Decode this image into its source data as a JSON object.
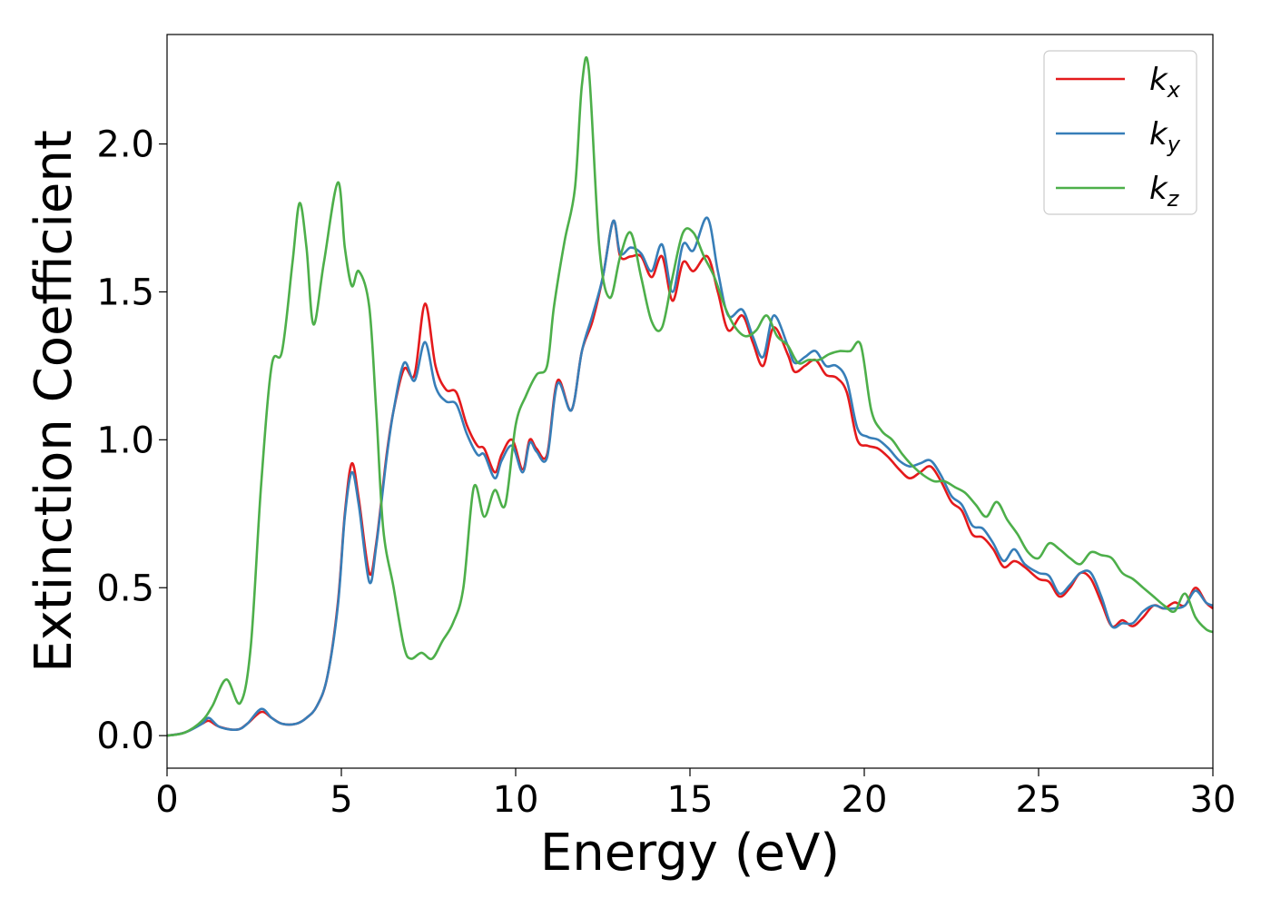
{
  "chart_data": {
    "type": "line",
    "title": "",
    "xlabel": "Energy (eV)",
    "ylabel": "Extinction Coefficient",
    "xlim": [
      0,
      30
    ],
    "ylim": [
      -0.11,
      2.37
    ],
    "xticks": [
      0,
      5,
      10,
      15,
      20,
      25,
      30
    ],
    "yticks": [
      0.0,
      0.5,
      1.0,
      1.5,
      2.0
    ],
    "xtick_labels": [
      "0",
      "5",
      "10",
      "15",
      "20",
      "25",
      "30"
    ],
    "ytick_labels": [
      "0.0",
      "0.5",
      "1.0",
      "1.5",
      "2.0"
    ],
    "grid": false,
    "legend_position": "top-right",
    "series": [
      {
        "name": "k_x",
        "legend_base": "k",
        "legend_sub": "x",
        "color": "#e41a1c",
        "x": [
          0,
          0.5,
          1.0,
          1.2,
          1.5,
          2.0,
          2.3,
          2.7,
          3.0,
          3.3,
          3.7,
          4.0,
          4.3,
          4.6,
          4.9,
          5.1,
          5.3,
          5.5,
          5.8,
          6.0,
          6.3,
          6.5,
          6.8,
          7.1,
          7.4,
          7.7,
          8.0,
          8.3,
          8.6,
          8.9,
          9.1,
          9.4,
          9.6,
          9.9,
          10.2,
          10.4,
          10.6,
          10.9,
          11.2,
          11.6,
          11.9,
          12.2,
          12.5,
          12.8,
          13.0,
          13.3,
          13.6,
          13.9,
          14.2,
          14.5,
          14.8,
          15.1,
          15.5,
          15.8,
          16.1,
          16.5,
          16.8,
          17.1,
          17.4,
          17.8,
          18.0,
          18.3,
          18.6,
          18.9,
          19.2,
          19.5,
          19.8,
          20.1,
          20.4,
          20.7,
          21.0,
          21.3,
          21.6,
          21.9,
          22.2,
          22.5,
          22.8,
          23.1,
          23.4,
          23.7,
          24.0,
          24.3,
          24.6,
          25.0,
          25.3,
          25.6,
          25.9,
          26.2,
          26.5,
          26.8,
          27.1,
          27.4,
          27.7,
          28.0,
          28.3,
          28.6,
          28.9,
          29.2,
          29.5,
          29.8,
          30.0
        ],
        "y": [
          0.0,
          0.01,
          0.04,
          0.05,
          0.03,
          0.02,
          0.04,
          0.08,
          0.06,
          0.04,
          0.04,
          0.06,
          0.1,
          0.2,
          0.45,
          0.75,
          0.92,
          0.8,
          0.55,
          0.65,
          0.95,
          1.1,
          1.24,
          1.22,
          1.46,
          1.25,
          1.17,
          1.16,
          1.05,
          0.98,
          0.97,
          0.89,
          0.95,
          1.0,
          0.9,
          1.0,
          0.97,
          0.95,
          1.2,
          1.1,
          1.3,
          1.4,
          1.55,
          1.74,
          1.62,
          1.62,
          1.62,
          1.55,
          1.62,
          1.47,
          1.6,
          1.57,
          1.62,
          1.5,
          1.37,
          1.42,
          1.33,
          1.25,
          1.38,
          1.29,
          1.23,
          1.25,
          1.27,
          1.22,
          1.21,
          1.16,
          1.0,
          0.98,
          0.97,
          0.94,
          0.9,
          0.87,
          0.89,
          0.91,
          0.86,
          0.79,
          0.76,
          0.68,
          0.67,
          0.63,
          0.57,
          0.59,
          0.57,
          0.53,
          0.52,
          0.47,
          0.5,
          0.55,
          0.53,
          0.45,
          0.37,
          0.39,
          0.37,
          0.4,
          0.44,
          0.43,
          0.45,
          0.44,
          0.5,
          0.45,
          0.43
        ]
      },
      {
        "name": "k_y",
        "legend_base": "k",
        "legend_sub": "y",
        "color": "#377eb8",
        "x": [
          0,
          0.5,
          1.0,
          1.2,
          1.5,
          2.0,
          2.3,
          2.7,
          3.0,
          3.3,
          3.7,
          4.0,
          4.3,
          4.6,
          4.9,
          5.1,
          5.3,
          5.5,
          5.8,
          6.0,
          6.3,
          6.5,
          6.8,
          7.1,
          7.4,
          7.7,
          8.0,
          8.3,
          8.6,
          8.9,
          9.1,
          9.4,
          9.6,
          9.9,
          10.2,
          10.4,
          10.6,
          10.9,
          11.2,
          11.6,
          11.9,
          12.2,
          12.5,
          12.8,
          13.0,
          13.3,
          13.6,
          13.9,
          14.2,
          14.5,
          14.8,
          15.1,
          15.5,
          15.8,
          16.1,
          16.5,
          16.8,
          17.1,
          17.4,
          17.8,
          18.0,
          18.3,
          18.6,
          18.9,
          19.2,
          19.5,
          19.8,
          20.1,
          20.4,
          20.7,
          21.0,
          21.3,
          21.6,
          21.9,
          22.2,
          22.5,
          22.8,
          23.1,
          23.4,
          23.7,
          24.0,
          24.3,
          24.6,
          25.0,
          25.3,
          25.6,
          25.9,
          26.2,
          26.5,
          26.8,
          27.1,
          27.4,
          27.7,
          28.0,
          28.3,
          28.6,
          28.9,
          29.2,
          29.5,
          29.8,
          30.0
        ],
        "y": [
          0.0,
          0.01,
          0.04,
          0.06,
          0.03,
          0.02,
          0.04,
          0.09,
          0.06,
          0.04,
          0.04,
          0.06,
          0.1,
          0.2,
          0.44,
          0.74,
          0.89,
          0.78,
          0.52,
          0.64,
          0.94,
          1.1,
          1.26,
          1.2,
          1.33,
          1.18,
          1.13,
          1.12,
          1.02,
          0.95,
          0.95,
          0.87,
          0.93,
          0.98,
          0.89,
          0.99,
          0.96,
          0.94,
          1.19,
          1.1,
          1.3,
          1.42,
          1.55,
          1.74,
          1.63,
          1.65,
          1.63,
          1.57,
          1.66,
          1.5,
          1.66,
          1.64,
          1.75,
          1.57,
          1.42,
          1.44,
          1.35,
          1.28,
          1.42,
          1.32,
          1.26,
          1.28,
          1.3,
          1.25,
          1.25,
          1.2,
          1.04,
          1.01,
          1.0,
          0.97,
          0.93,
          0.91,
          0.92,
          0.93,
          0.88,
          0.81,
          0.78,
          0.71,
          0.7,
          0.65,
          0.59,
          0.63,
          0.58,
          0.55,
          0.54,
          0.48,
          0.51,
          0.55,
          0.55,
          0.47,
          0.37,
          0.38,
          0.38,
          0.42,
          0.44,
          0.43,
          0.43,
          0.44,
          0.49,
          0.45,
          0.44
        ]
      },
      {
        "name": "k_z",
        "legend_base": "k",
        "legend_sub": "z",
        "color": "#4daf4a",
        "x": [
          0,
          0.5,
          1.0,
          1.3,
          1.7,
          2.1,
          2.4,
          2.7,
          3.0,
          3.3,
          3.6,
          3.8,
          4.0,
          4.2,
          4.5,
          4.9,
          5.1,
          5.3,
          5.5,
          5.8,
          6.0,
          6.2,
          6.5,
          6.8,
          7.0,
          7.3,
          7.6,
          7.9,
          8.2,
          8.5,
          8.8,
          9.1,
          9.4,
          9.7,
          10.0,
          10.3,
          10.6,
          10.9,
          11.1,
          11.4,
          11.7,
          11.9,
          12.1,
          12.4,
          12.7,
          13.0,
          13.3,
          13.6,
          13.9,
          14.2,
          14.5,
          14.8,
          15.1,
          15.4,
          15.7,
          16.0,
          16.3,
          16.6,
          16.9,
          17.2,
          17.5,
          17.8,
          18.1,
          18.4,
          18.7,
          19.0,
          19.3,
          19.6,
          19.9,
          20.2,
          20.5,
          20.8,
          21.1,
          21.4,
          21.7,
          22.0,
          22.3,
          22.6,
          22.9,
          23.2,
          23.5,
          23.8,
          24.1,
          24.4,
          24.7,
          25.0,
          25.3,
          25.6,
          25.9,
          26.2,
          26.5,
          26.8,
          27.1,
          27.4,
          27.7,
          28.0,
          28.3,
          28.6,
          28.9,
          29.2,
          29.5,
          29.8,
          30.0
        ],
        "y": [
          0.0,
          0.01,
          0.05,
          0.1,
          0.19,
          0.11,
          0.3,
          0.85,
          1.25,
          1.3,
          1.6,
          1.8,
          1.65,
          1.39,
          1.6,
          1.87,
          1.65,
          1.52,
          1.57,
          1.45,
          1.1,
          0.7,
          0.5,
          0.3,
          0.26,
          0.28,
          0.26,
          0.32,
          0.38,
          0.5,
          0.84,
          0.74,
          0.83,
          0.78,
          1.05,
          1.15,
          1.22,
          1.25,
          1.45,
          1.67,
          1.85,
          2.2,
          2.25,
          1.65,
          1.48,
          1.62,
          1.7,
          1.55,
          1.4,
          1.38,
          1.55,
          1.7,
          1.7,
          1.62,
          1.55,
          1.45,
          1.38,
          1.35,
          1.37,
          1.42,
          1.35,
          1.32,
          1.26,
          1.27,
          1.27,
          1.29,
          1.3,
          1.3,
          1.32,
          1.1,
          1.03,
          1.0,
          0.95,
          0.91,
          0.88,
          0.86,
          0.86,
          0.84,
          0.82,
          0.78,
          0.74,
          0.79,
          0.73,
          0.68,
          0.62,
          0.6,
          0.65,
          0.63,
          0.6,
          0.58,
          0.62,
          0.61,
          0.6,
          0.55,
          0.53,
          0.5,
          0.47,
          0.44,
          0.42,
          0.48,
          0.4,
          0.36,
          0.35
        ]
      }
    ]
  }
}
